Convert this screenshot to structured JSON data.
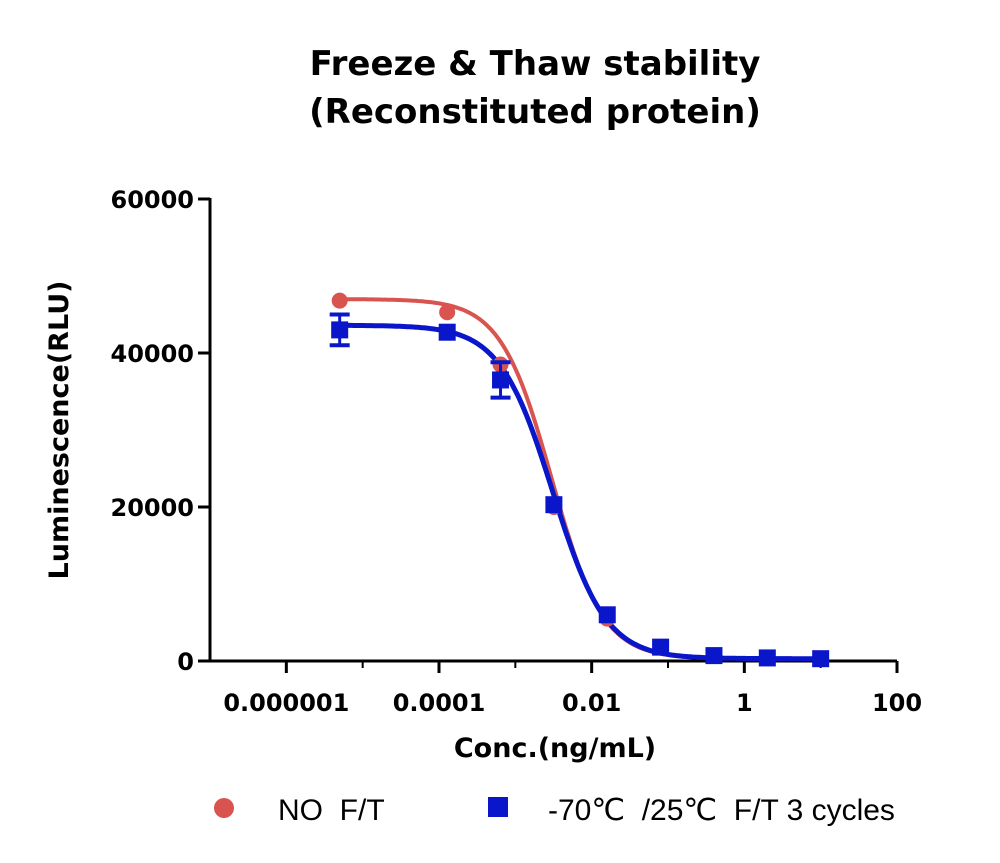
{
  "chart_data": {
    "type": "scatter",
    "title_lines": [
      "Freeze & Thaw stability",
      "(Reconstituted protein)"
    ],
    "xlabel": "Conc.(ng/mL)",
    "ylabel": "Luminescence(RLU)",
    "x_scale": "log",
    "xlim": [
      1e-07,
      100
    ],
    "ylim": [
      0,
      60000
    ],
    "x_ticks": [
      1e-06,
      0.0001,
      0.01,
      1,
      100
    ],
    "x_tick_labels": [
      "0.000001",
      "0.0001",
      "0.01",
      "1",
      "100"
    ],
    "y_ticks": [
      0,
      20000,
      40000,
      60000
    ],
    "y_tick_labels": [
      "0",
      "20000",
      "40000",
      "60000"
    ],
    "grid": false,
    "legend_position": "bottom",
    "series": [
      {
        "name": "NO  F/T",
        "color": "#d9534f",
        "marker": "circle",
        "x": [
          5e-06,
          0.000128,
          0.00064,
          0.0032,
          0.016,
          0.08,
          0.4,
          2,
          10
        ],
        "y": [
          46800,
          45300,
          38500,
          20000,
          5500,
          1800,
          700,
          400,
          300
        ],
        "error": [
          0,
          0,
          0,
          0,
          0,
          0,
          0,
          0,
          0
        ],
        "fit": {
          "top": 47000,
          "bottom": 300,
          "ec50": 0.003,
          "hill": 1.3
        }
      },
      {
        "name": "-70℃  /25℃  F/T 3 cycles",
        "color": "#0a16c9",
        "marker": "square",
        "x": [
          5e-06,
          0.000128,
          0.00064,
          0.0032,
          0.016,
          0.08,
          0.4,
          2,
          10
        ],
        "y": [
          43000,
          42700,
          36500,
          20300,
          6000,
          1800,
          700,
          400,
          300
        ],
        "error": [
          2000,
          0,
          2300,
          0,
          0,
          0,
          0,
          0,
          0
        ],
        "fit": {
          "top": 43600,
          "bottom": 300,
          "ec50": 0.0031,
          "hill": 1.25
        }
      }
    ]
  }
}
